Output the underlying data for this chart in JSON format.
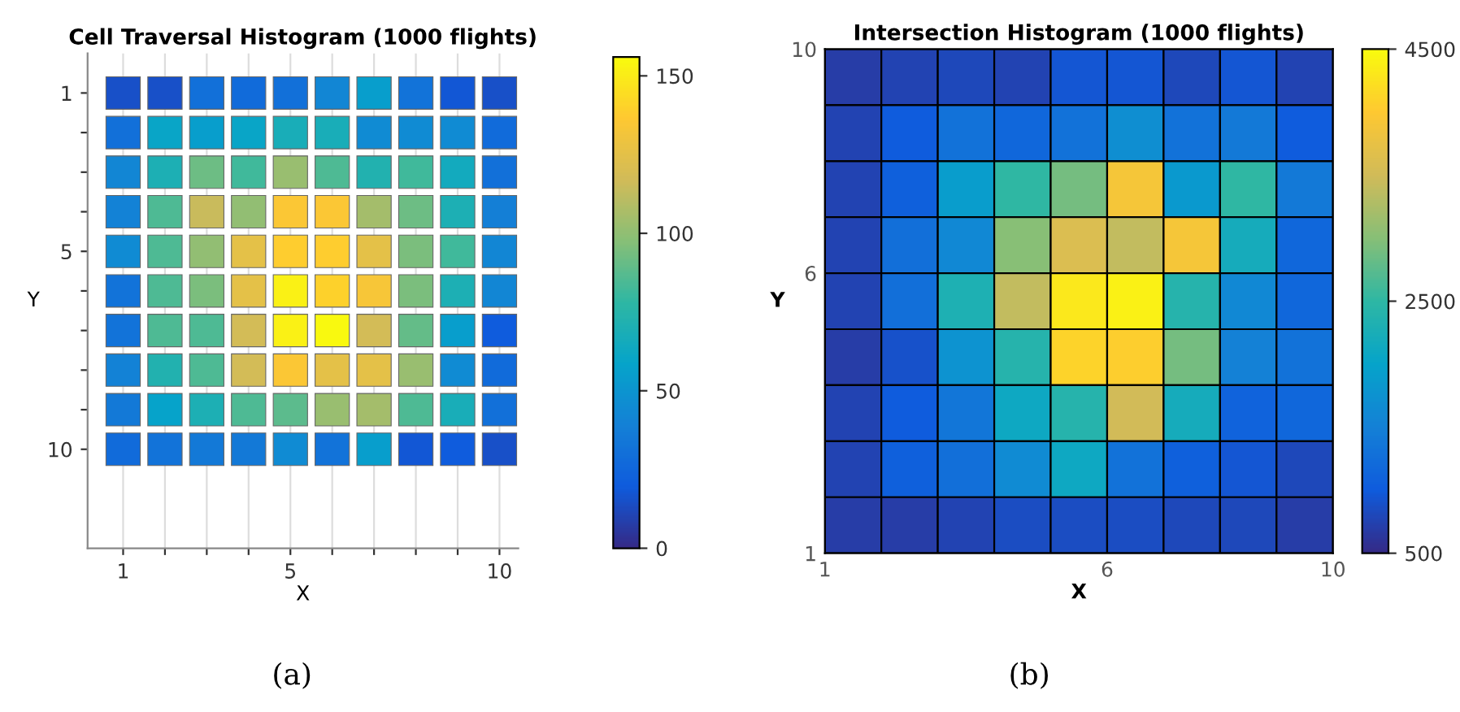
{
  "chart_data": [
    {
      "type": "heatmap",
      "title": "Cell Traversal Histogram (1000 flights)",
      "xlabel": "X",
      "ylabel": "Y",
      "categories": [
        "1",
        null,
        null,
        null,
        "5",
        null,
        null,
        null,
        null,
        "10"
      ],
      "y_categories": [
        "1",
        null,
        null,
        null,
        "5",
        null,
        null,
        null,
        null,
        "10"
      ],
      "cells": [
        [
          15,
          15,
          30,
          28,
          30,
          42,
          55,
          32,
          18,
          15
        ],
        [
          30,
          60,
          55,
          60,
          68,
          68,
          45,
          45,
          45,
          28
        ],
        [
          42,
          70,
          92,
          82,
          102,
          85,
          72,
          82,
          65,
          30
        ],
        [
          40,
          85,
          115,
          100,
          135,
          135,
          105,
          92,
          70,
          38
        ],
        [
          45,
          85,
          100,
          125,
          138,
          138,
          125,
          95,
          82,
          42
        ],
        [
          32,
          85,
          95,
          125,
          152,
          140,
          133,
          95,
          70,
          42
        ],
        [
          32,
          85,
          85,
          118,
          152,
          155,
          118,
          90,
          55,
          20
        ],
        [
          40,
          72,
          85,
          118,
          135,
          125,
          125,
          102,
          45,
          28
        ],
        [
          35,
          58,
          70,
          85,
          88,
          102,
          105,
          85,
          68,
          30
        ],
        [
          28,
          32,
          35,
          35,
          45,
          32,
          55,
          18,
          20,
          15
        ]
      ],
      "clim": [
        0,
        156
      ],
      "cticks": [
        0,
        50,
        100,
        150
      ],
      "grid": "x",
      "annotations": [
        "(a)"
      ]
    },
    {
      "type": "heatmap",
      "title": "Intersection Histogram (1000 flights)",
      "xlabel": "X",
      "ylabel": "Y",
      "xlim": [
        1,
        10
      ],
      "ylim": [
        1,
        10
      ],
      "xticks": [
        1,
        6,
        10
      ],
      "yticks": [
        1,
        6,
        10
      ],
      "cells": [
        [
          700,
          750,
          800,
          750,
          950,
          950,
          800,
          950,
          750
        ],
        [
          750,
          1000,
          1300,
          1150,
          1300,
          1700,
          1300,
          1400,
          1000
        ],
        [
          750,
          1050,
          1900,
          2500,
          2900,
          3900,
          1850,
          2500,
          1400
        ],
        [
          750,
          1250,
          1600,
          3000,
          3600,
          3400,
          3900,
          2200,
          1150
        ],
        [
          750,
          1250,
          2300,
          3400,
          4300,
          4400,
          2400,
          1600,
          1150
        ],
        [
          700,
          900,
          1750,
          2400,
          4100,
          4050,
          2900,
          1500,
          1300
        ],
        [
          750,
          1000,
          1350,
          2100,
          2400,
          3500,
          2200,
          1100,
          1150
        ],
        [
          750,
          1050,
          1250,
          1650,
          2100,
          1300,
          1050,
          950,
          800
        ],
        [
          700,
          700,
          750,
          850,
          850,
          850,
          800,
          800,
          700
        ]
      ],
      "clim": [
        500,
        4500
      ],
      "cticks": [
        500,
        2500,
        4500
      ],
      "annotations": [
        "(b)"
      ]
    }
  ]
}
